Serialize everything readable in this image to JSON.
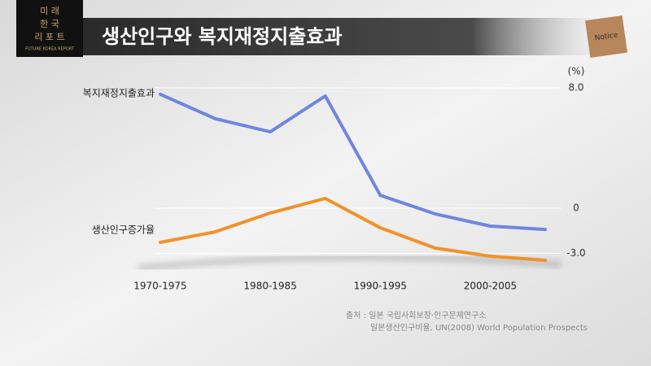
{
  "logo": {
    "lines": [
      "미 래",
      "한 국",
      "리 포 트"
    ],
    "subtitle": "FUTURE KOREA REPORT"
  },
  "badge": "Notice",
  "chart_data": {
    "type": "line",
    "title": "생산인구와 복지재정지출효과",
    "y_label": "(%)",
    "categories": [
      "1970-1975",
      null,
      "1980-1985",
      null,
      "1990-1995",
      null,
      "2000-2005",
      null
    ],
    "series": [
      {
        "name": "복지재정지출효과",
        "color": "#6f86e0",
        "values": [
          7.57,
          5.95,
          5.08,
          7.46,
          0.86,
          -0.38,
          -1.19,
          -1.41
        ]
      },
      {
        "name": "생산인구증가율",
        "color": "#f0922a",
        "values": [
          -2.27,
          -1.57,
          -0.32,
          0.65,
          -1.3,
          -2.65,
          -3.19,
          -3.46
        ]
      }
    ],
    "ylim": [
      -4,
      8.5
    ],
    "yticks": [
      {
        "value": 8,
        "label": "8.0"
      },
      0,
      {
        "value": -3,
        "label": "-3.0"
      }
    ],
    "grid": true,
    "source": [
      "출처 : 일본 국립사회보장·인구문제연구소",
      "일본생산인구비율, UN(2008) World Population Prospects"
    ]
  }
}
